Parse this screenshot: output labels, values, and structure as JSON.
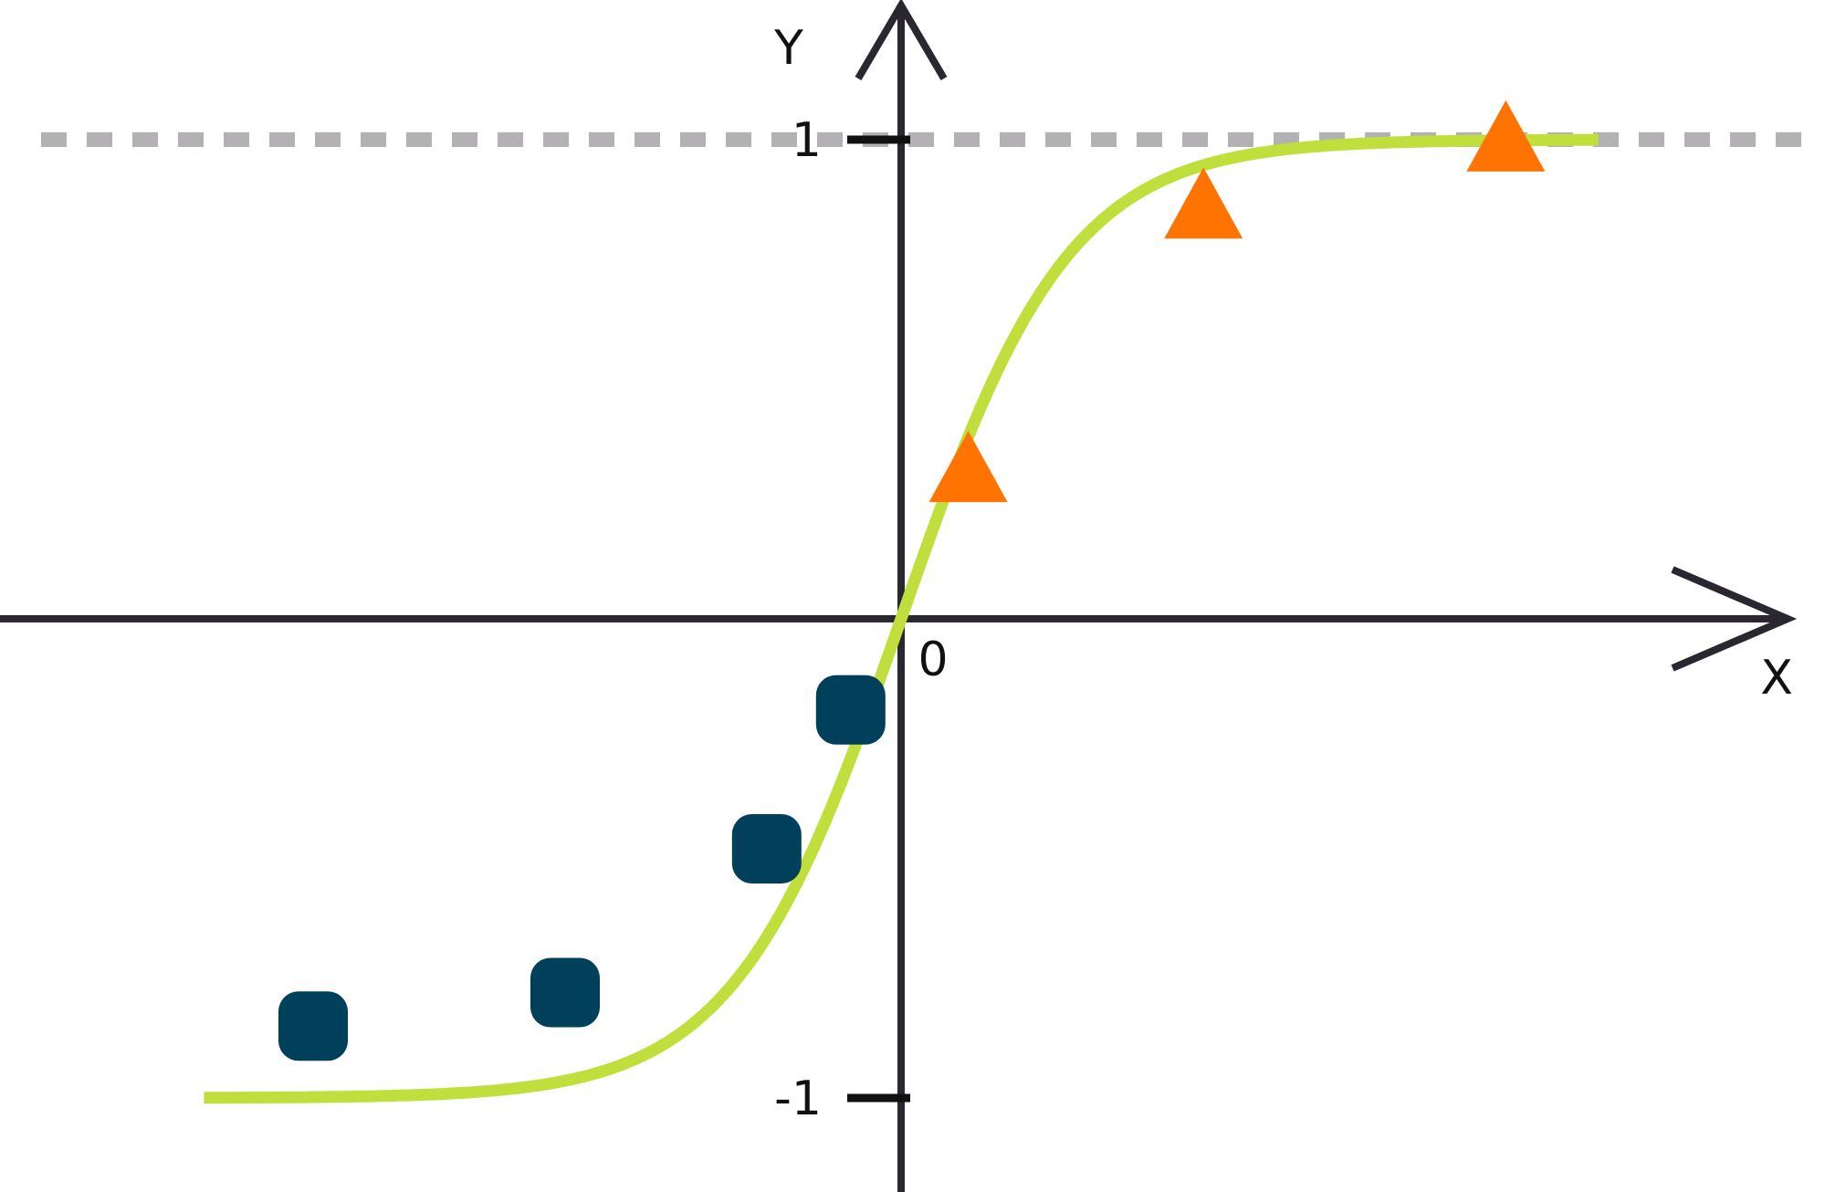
{
  "chart_data": {
    "type": "scatter",
    "title": "",
    "xlabel": "X",
    "ylabel": "Y",
    "xlim": [
      -4.9,
      4.9
    ],
    "ylim": [
      -1.2,
      1.15
    ],
    "grid": false,
    "legend": "none",
    "origin_label": "0",
    "y_ticks": [
      {
        "value": 1,
        "label": "1"
      },
      {
        "value": -1,
        "label": "-1"
      }
    ],
    "asymptote": {
      "y": 1,
      "style": "dashed"
    },
    "curve": {
      "function": "tanh",
      "x_range": [
        -4.15,
        4.15
      ]
    },
    "series": [
      {
        "marker": "rounded-square",
        "points": [
          [
            -3.5,
            -0.85
          ],
          [
            -2.0,
            -0.78
          ],
          [
            -0.8,
            -0.48
          ],
          [
            -0.3,
            -0.19
          ]
        ]
      },
      {
        "marker": "triangle",
        "points": [
          [
            0.4,
            0.3
          ],
          [
            1.8,
            0.85
          ],
          [
            3.6,
            0.99
          ]
        ]
      }
    ],
    "colors": {
      "curve": "#c0df3c",
      "squares": "#00405a",
      "triangles": "#ff7300",
      "axes": "#2b2730",
      "asymptote": "#b3b1b3",
      "ticks": "#111111"
    }
  }
}
